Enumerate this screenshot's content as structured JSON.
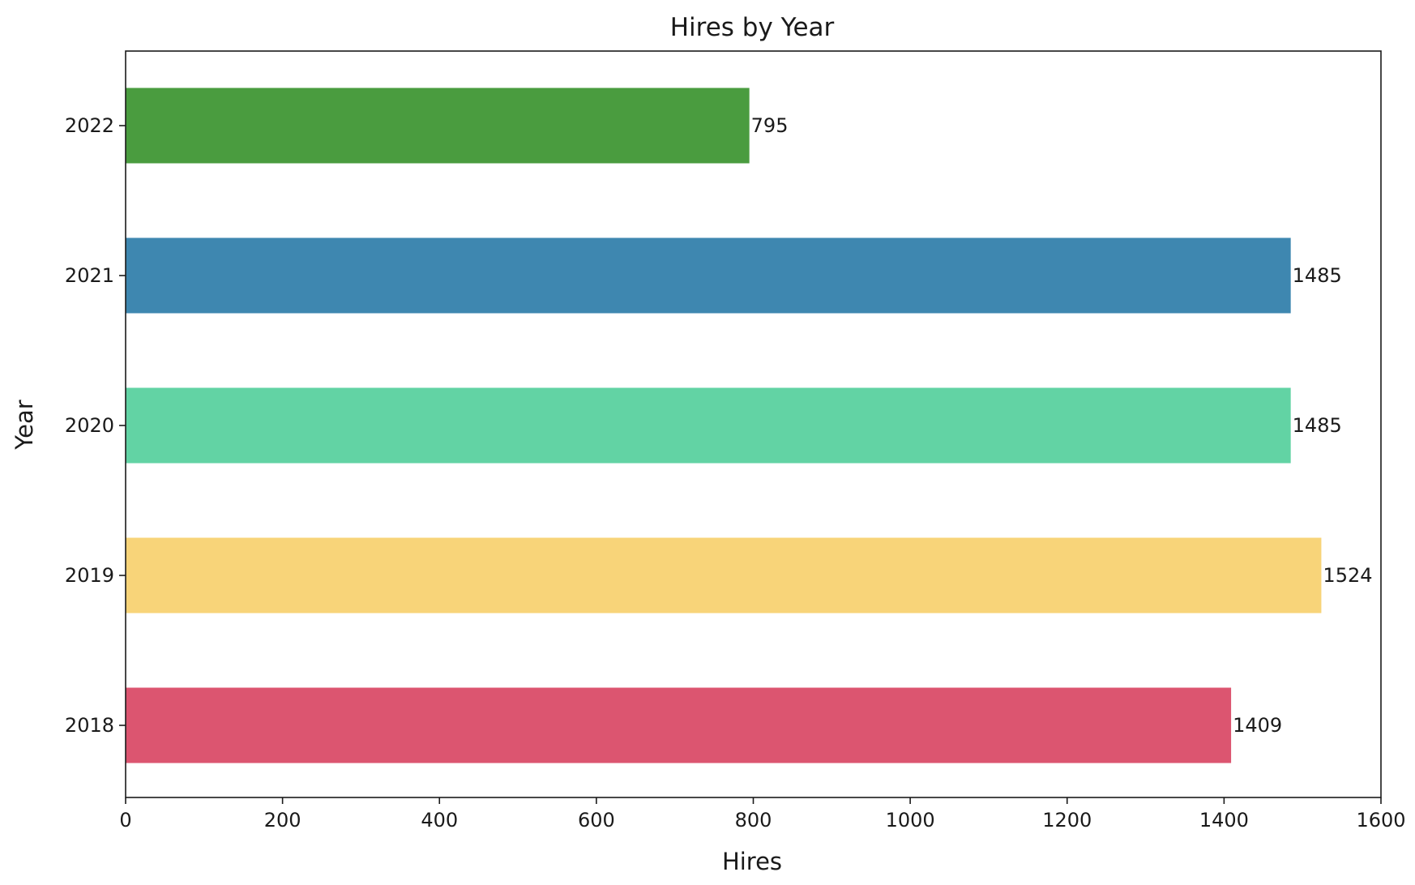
{
  "chart_data": {
    "type": "bar",
    "orientation": "horizontal",
    "title": "Hires by Year",
    "xlabel": "Hires",
    "ylabel": "Year",
    "categories": [
      "2018",
      "2019",
      "2020",
      "2021",
      "2022"
    ],
    "values": [
      1409,
      1524,
      1485,
      1485,
      795
    ],
    "data_labels": [
      "1409",
      "1524",
      "1485",
      "1485",
      "795"
    ],
    "colors": [
      "#dc5570",
      "#f8d479",
      "#62d3a4",
      "#3e87b0",
      "#4a9c3f"
    ],
    "xlim": [
      0,
      1600
    ],
    "xticks": [
      0,
      200,
      400,
      600,
      800,
      1000,
      1200,
      1400,
      1600
    ],
    "grid": false,
    "legend": false
  }
}
